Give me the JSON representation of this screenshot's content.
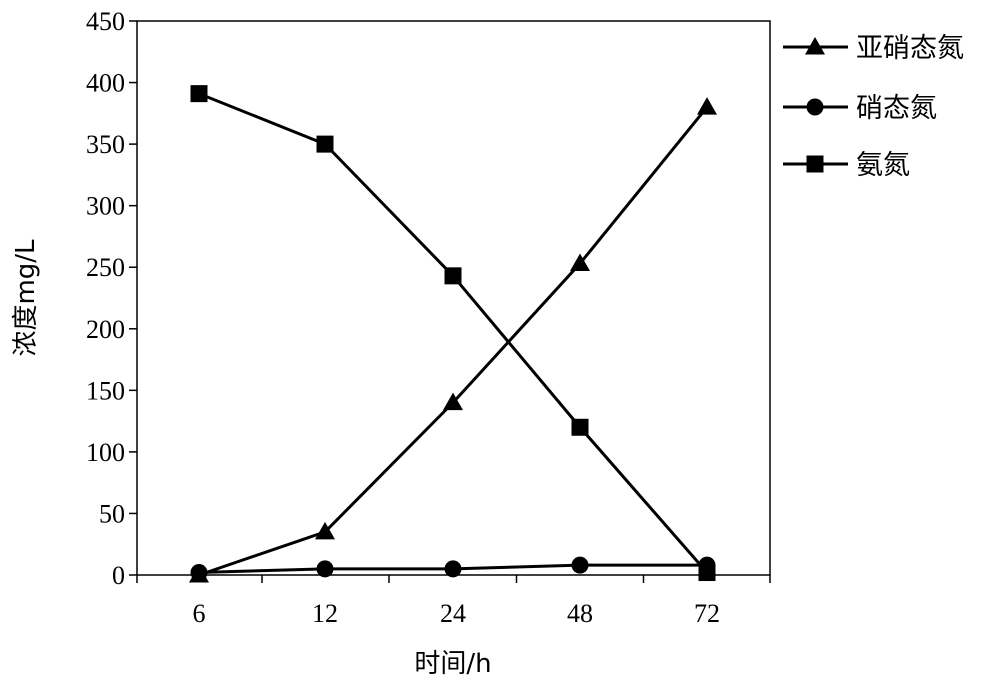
{
  "chart_data": {
    "type": "line",
    "categories": [
      "6",
      "12",
      "24",
      "48",
      "72"
    ],
    "xlabel": "时间/h",
    "ylabel": "浓度mg/L",
    "ylim": [
      0,
      450
    ],
    "yticks": [
      "0",
      "50",
      "100",
      "150",
      "200",
      "250",
      "300",
      "350",
      "400",
      "450"
    ],
    "grid": false,
    "legend_position": "right",
    "series": [
      {
        "name": "亚硝态氮",
        "marker": "triangle",
        "color": "#000000",
        "values": [
          0,
          35,
          140,
          253,
          380
        ]
      },
      {
        "name": "硝态氮",
        "marker": "circle",
        "color": "#000000",
        "values": [
          2,
          5,
          5,
          8,
          8
        ]
      },
      {
        "name": "氨氮",
        "marker": "square",
        "color": "#000000",
        "values": [
          391,
          350,
          243,
          120,
          2
        ]
      }
    ]
  }
}
